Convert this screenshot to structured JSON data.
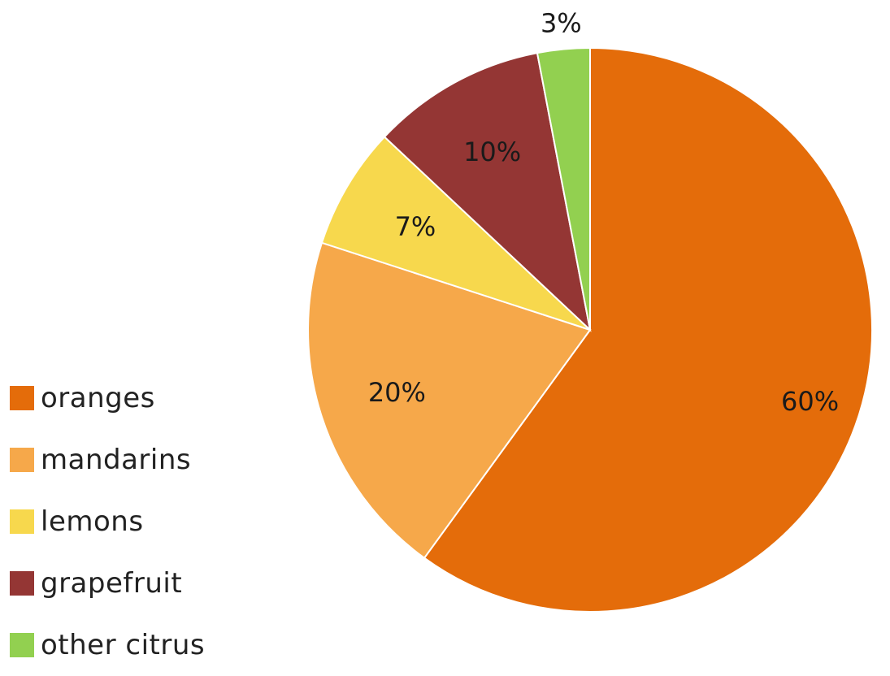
{
  "chart_data": {
    "type": "pie",
    "title": "",
    "categories": [
      "oranges",
      "mandarins",
      "lemons",
      "grapefruit",
      "other citrus"
    ],
    "values": [
      60,
      20,
      7,
      10,
      3
    ],
    "labels": [
      "60%",
      "20%",
      "7%",
      "10%",
      "3%"
    ],
    "colors": [
      "#E46C0A",
      "#F6A84A",
      "#F7D84D",
      "#943634",
      "#92D050"
    ],
    "start_angle_deg": 0,
    "direction": "clockwise",
    "legend_position": "bottom-left"
  }
}
